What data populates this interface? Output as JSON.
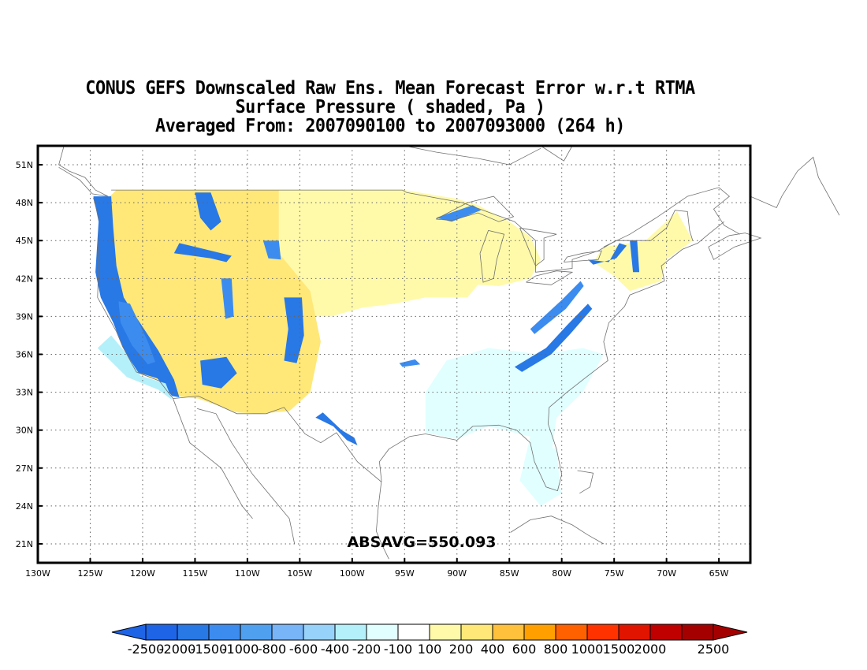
{
  "titles": [
    "CONUS GEFS Downscaled Raw Ens. Mean Forecast Error w.r.t RTMA",
    "Surface Pressure ( shaded, Pa )",
    "Averaged From: 2007090100 to 2007093000 (264 h)"
  ],
  "map": {
    "lon_range": [
      -130,
      -62
    ],
    "lat_range": [
      19.5,
      52.5
    ],
    "lon_ticks": [
      -130,
      -125,
      -120,
      -115,
      -110,
      -105,
      -100,
      -95,
      -90,
      -85,
      -80,
      -75,
      -70,
      -65
    ],
    "lon_tick_labels": [
      "130W",
      "125W",
      "120W",
      "115W",
      "110W",
      "105W",
      "100W",
      "95W",
      "90W",
      "85W",
      "80W",
      "75W",
      "70W",
      "65W"
    ],
    "lat_ticks": [
      21,
      24,
      27,
      30,
      33,
      36,
      39,
      42,
      45,
      48,
      51
    ],
    "lat_tick_labels": [
      "21N",
      "24N",
      "27N",
      "30N",
      "33N",
      "36N",
      "39N",
      "42N",
      "45N",
      "48N",
      "51N"
    ],
    "grid": true,
    "annotation": "ABSAVG=550.093"
  },
  "colorbar": {
    "labels": [
      "-2500",
      "-2000",
      "-1500",
      "-1000",
      "-800",
      "-600",
      "-400",
      "-200",
      "-100",
      "100",
      "200",
      "400",
      "600",
      "800",
      "1000",
      "1500",
      "2000",
      "2500"
    ],
    "colors": [
      "#1e64e6",
      "#2878e6",
      "#3c8cf0",
      "#50a0f0",
      "#78b4f8",
      "#96d2fa",
      "#b4f0fa",
      "#e1ffff",
      "#ffffff",
      "#fffaaa",
      "#ffe878",
      "#ffc03c",
      "#ffa000",
      "#ff6000",
      "#ff3200",
      "#e11400",
      "#c00000",
      "#a50000"
    ]
  },
  "regions": {
    "low_light": "#e1ffff",
    "low_mid": "#b4f0fa",
    "low_strong": "#2878e6",
    "low_alt": "#3c8cf0",
    "high_light": "#fffaaa",
    "high_mid": "#ffe878",
    "high_strong": "#ffc03c"
  }
}
